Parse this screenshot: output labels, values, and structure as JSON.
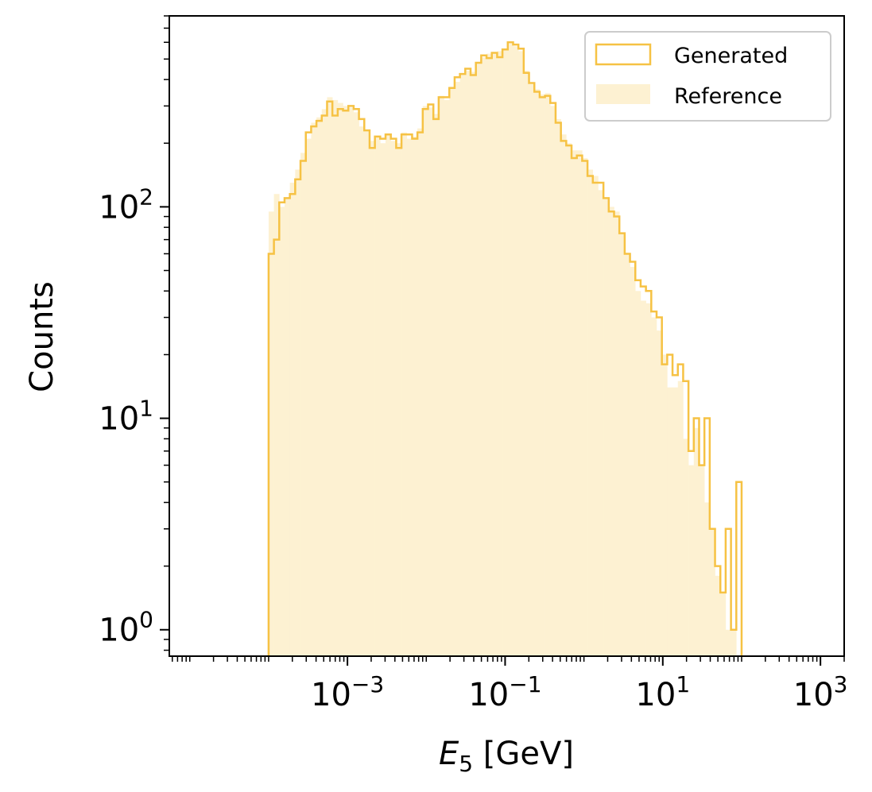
{
  "chart_data": {
    "type": "histogram",
    "xscale": "log",
    "yscale": "log",
    "xlabel_main": "E",
    "xlabel_sub": "5",
    "xlabel_unit": " [GeV]",
    "ylabel": "Counts",
    "xlim": [
      5.5e-06,
      2000
    ],
    "ylim": [
      0.75,
      800
    ],
    "grid": false,
    "legend_position": "upper right",
    "colors": {
      "generated": "#f6c244",
      "reference": "#fdf1d2"
    },
    "x_ticks": [
      {
        "base": "10",
        "exp": "−3",
        "value": 0.001
      },
      {
        "base": "10",
        "exp": "−1",
        "value": 0.1
      },
      {
        "base": "10",
        "exp": "1",
        "value": 10
      },
      {
        "base": "10",
        "exp": "3",
        "value": 1000
      }
    ],
    "y_ticks": [
      {
        "base": "10",
        "exp": "0",
        "value": 1
      },
      {
        "base": "10",
        "exp": "1",
        "value": 10
      },
      {
        "base": "10",
        "exp": "2",
        "value": 100
      }
    ],
    "bin_start": 0.0001,
    "bin_end": 100,
    "series": [
      {
        "name": "Generated",
        "style": "step",
        "values": [
          60,
          70,
          105,
          110,
          115,
          135,
          165,
          225,
          240,
          255,
          270,
          315,
          270,
          290,
          285,
          300,
          290,
          260,
          230,
          190,
          215,
          210,
          220,
          210,
          190,
          220,
          220,
          210,
          225,
          290,
          305,
          260,
          330,
          330,
          365,
          410,
          425,
          450,
          420,
          480,
          520,
          505,
          535,
          510,
          555,
          600,
          585,
          560,
          430,
          385,
          350,
          330,
          335,
          310,
          250,
          205,
          195,
          170,
          175,
          165,
          140,
          130,
          130,
          110,
          95,
          90,
          75,
          60,
          55,
          45,
          42,
          40,
          32,
          30,
          18,
          20,
          16,
          18,
          15,
          7,
          10,
          6,
          10,
          3,
          2,
          1.5,
          3,
          1,
          5
        ]
      },
      {
        "name": "Reference",
        "style": "filled",
        "values": [
          95,
          115,
          100,
          110,
          130,
          150,
          180,
          210,
          250,
          265,
          290,
          330,
          320,
          310,
          300,
          295,
          280,
          240,
          230,
          205,
          215,
          200,
          220,
          205,
          200,
          225,
          210,
          215,
          235,
          300,
          295,
          275,
          335,
          320,
          370,
          390,
          420,
          440,
          435,
          480,
          510,
          530,
          540,
          545,
          560,
          590,
          575,
          545,
          440,
          380,
          360,
          340,
          345,
          300,
          260,
          220,
          200,
          185,
          185,
          170,
          150,
          140,
          120,
          110,
          100,
          95,
          75,
          60,
          52,
          40,
          36,
          35,
          30,
          26,
          20,
          14,
          14,
          15,
          8,
          6,
          9,
          6,
          4,
          3,
          1.8,
          1.5,
          1,
          1,
          0
        ]
      }
    ]
  }
}
